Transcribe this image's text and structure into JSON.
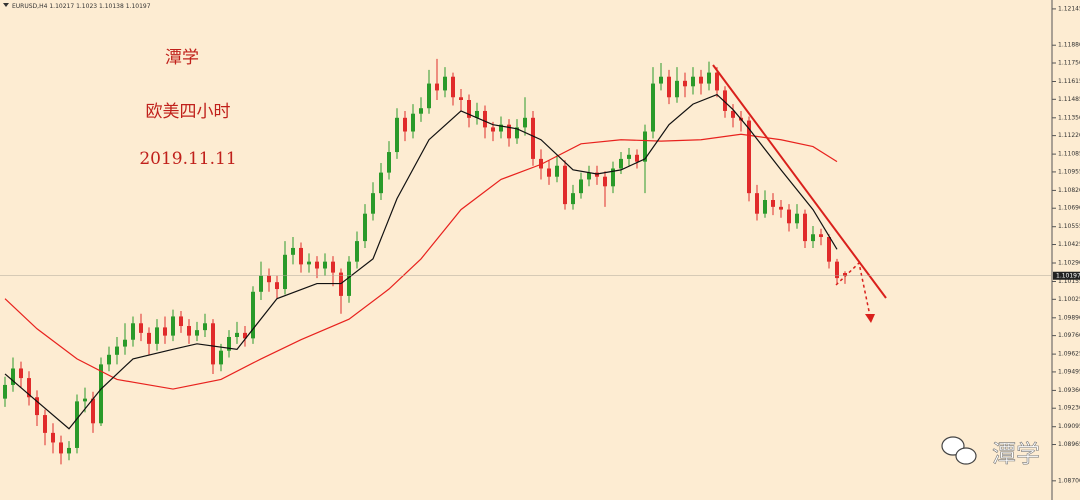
{
  "chart_data": {
    "type": "candlestick",
    "symbol": "EURUSD,H4",
    "up_color": "#2a9a2a",
    "down_color": "#e02b2b",
    "ylim": [
      1.0856,
      1.1221
    ],
    "yticks": [
      1.12145,
      {
        "value": 1.1188,
        "label": "1.11880"
      },
      {
        "value": 1.1175,
        "label": "1.11750"
      },
      1.11615,
      1.11485,
      {
        "value": 1.1135,
        "label": "1.11350"
      },
      {
        "value": 1.1122,
        "label": "1.11220"
      },
      1.11085,
      1.10955,
      {
        "value": 1.1082,
        "label": "1.10820"
      },
      {
        "value": 1.1069,
        "label": "1.10690"
      },
      1.10555,
      1.10425,
      {
        "value": 1.1029,
        "label": "1.10290"
      },
      1.10155,
      1.10025,
      {
        "value": 1.0989,
        "label": "1.09890"
      },
      {
        "value": 1.0976,
        "label": "1.09760"
      },
      1.09625,
      1.09495,
      {
        "value": 1.0936,
        "label": "1.09360"
      },
      {
        "value": 1.0923,
        "label": "1.09230"
      },
      1.09095,
      1.08965,
      {
        "value": 1.087,
        "label": "1.08700"
      }
    ],
    "open": [
      1.093,
      1.094,
      1.0952,
      1.0945,
      1.0931,
      1.0918,
      1.0905,
      1.0898,
      1.089,
      1.0894,
      1.0928,
      1.093,
      1.0912,
      1.0955,
      1.0962,
      1.0968,
      1.0973,
      1.0985,
      1.0978,
      1.097,
      1.0982,
      1.0976,
      1.099,
      1.0983,
      1.0976,
      1.098,
      1.0985,
      1.0955,
      1.0965,
      1.0975,
      1.0978,
      1.0974,
      1.1008,
      1.102,
      1.1015,
      1.101,
      1.1035,
      1.104,
      1.1028,
      1.103,
      1.1025,
      1.103,
      1.1022,
      1.1005,
      1.103,
      1.1045,
      1.1065,
      1.108,
      1.1095,
      1.111,
      1.1135,
      1.1125,
      1.1138,
      1.1142,
      1.116,
      1.1155,
      1.1165,
      1.115,
      1.1148,
      1.1135,
      1.114,
      1.1128,
      1.1125,
      1.113,
      1.112,
      1.1128,
      1.1135,
      1.1105,
      1.1098,
      1.1092,
      1.11,
      1.1072,
      1.108,
      1.109,
      1.1095,
      1.1092,
      1.1085,
      1.1098,
      1.1105,
      1.1108,
      1.1103,
      1.1125,
      1.116,
      1.1165,
      1.115,
      1.1162,
      1.1158,
      1.1165,
      1.116,
      1.1168,
      1.1155,
      1.114,
      1.1135,
      1.1133,
      1.108,
      1.1065,
      1.1075,
      1.107,
      1.1068,
      1.1058,
      1.1065,
      1.1045,
      1.105,
      1.1048,
      1.103,
      1.10217
    ],
    "high": [
      1.0946,
      1.096,
      1.0957,
      1.095,
      1.0936,
      1.0922,
      1.0912,
      1.0903,
      1.0899,
      1.0933,
      1.0938,
      1.0935,
      1.096,
      1.0968,
      1.0975,
      1.0985,
      1.099,
      1.0992,
      1.0982,
      1.0988,
      1.099,
      1.0995,
      1.0994,
      1.0988,
      1.0986,
      1.0992,
      1.0988,
      1.097,
      1.098,
      1.0986,
      1.0983,
      1.1012,
      1.103,
      1.1025,
      1.102,
      1.1045,
      1.1048,
      1.1044,
      1.1036,
      1.1034,
      1.1036,
      1.1034,
      1.1025,
      1.1034,
      1.1052,
      1.1072,
      1.1088,
      1.1102,
      1.1118,
      1.1142,
      1.114,
      1.1145,
      1.115,
      1.117,
      1.1178,
      1.1172,
      1.1168,
      1.1156,
      1.1152,
      1.1146,
      1.1144,
      1.1132,
      1.1136,
      1.1134,
      1.1134,
      1.115,
      1.114,
      1.1112,
      1.1104,
      1.1108,
      1.1104,
      1.1086,
      1.1095,
      1.11,
      1.11,
      1.1096,
      1.1103,
      1.111,
      1.1113,
      1.1112,
      1.113,
      1.1172,
      1.1175,
      1.117,
      1.1172,
      1.1168,
      1.1172,
      1.117,
      1.1176,
      1.1172,
      1.1158,
      1.1145,
      1.114,
      1.1136,
      1.1086,
      1.1082,
      1.108,
      1.1075,
      1.1072,
      1.1072,
      1.1068,
      1.1056,
      1.1054,
      1.105,
      1.1032,
      1.1023
    ],
    "low": [
      1.0924,
      1.0935,
      1.0938,
      1.0925,
      1.091,
      1.0896,
      1.089,
      1.0882,
      1.0885,
      1.089,
      1.092,
      1.0905,
      1.091,
      1.095,
      1.0955,
      1.0962,
      1.0968,
      1.0972,
      1.0962,
      1.0965,
      1.097,
      1.0972,
      1.0978,
      1.097,
      1.0972,
      1.0975,
      1.0948,
      1.095,
      1.096,
      1.097,
      1.0968,
      1.097,
      1.1002,
      1.1008,
      1.1003,
      1.1006,
      1.1028,
      1.1022,
      1.1022,
      1.1018,
      1.102,
      1.1012,
      1.0992,
      1.1,
      1.1025,
      1.104,
      1.106,
      1.1075,
      1.109,
      1.1105,
      1.1118,
      1.112,
      1.1132,
      1.1138,
      1.1148,
      1.115,
      1.1144,
      1.114,
      1.1128,
      1.113,
      1.112,
      1.1118,
      1.112,
      1.1114,
      1.1116,
      1.1122,
      1.11,
      1.109,
      1.1086,
      1.1088,
      1.1068,
      1.1068,
      1.1076,
      1.1085,
      1.1086,
      1.107,
      1.108,
      1.1094,
      1.11,
      1.1098,
      1.108,
      1.112,
      1.1155,
      1.1145,
      1.1146,
      1.115,
      1.1152,
      1.1152,
      1.1155,
      1.115,
      1.1135,
      1.1128,
      1.1125,
      1.1074,
      1.106,
      1.1062,
      1.1064,
      1.1062,
      1.1052,
      1.1054,
      1.104,
      1.104,
      1.1042,
      1.1025,
      1.1014,
      1.10138
    ],
    "close": [
      1.094,
      1.0952,
      1.0945,
      1.0931,
      1.0918,
      1.0905,
      1.0898,
      1.089,
      1.0894,
      1.0928,
      1.093,
      1.0912,
      1.0955,
      1.0962,
      1.0968,
      1.0973,
      1.0985,
      1.0978,
      1.097,
      1.0982,
      1.0976,
      1.099,
      1.0983,
      1.0976,
      1.098,
      1.0985,
      1.0955,
      1.0965,
      1.0975,
      1.0978,
      1.0974,
      1.1008,
      1.102,
      1.1015,
      1.101,
      1.1035,
      1.104,
      1.1028,
      1.103,
      1.1025,
      1.103,
      1.1022,
      1.1005,
      1.103,
      1.1045,
      1.1065,
      1.108,
      1.1095,
      1.111,
      1.1135,
      1.1125,
      1.1138,
      1.1142,
      1.116,
      1.1155,
      1.1165,
      1.115,
      1.1148,
      1.1135,
      1.114,
      1.1128,
      1.1125,
      1.113,
      1.112,
      1.1128,
      1.1135,
      1.1105,
      1.1098,
      1.1092,
      1.11,
      1.1072,
      1.108,
      1.109,
      1.1095,
      1.1092,
      1.1085,
      1.1098,
      1.1105,
      1.1108,
      1.1103,
      1.1125,
      1.116,
      1.1165,
      1.115,
      1.1162,
      1.1158,
      1.1165,
      1.116,
      1.1168,
      1.1155,
      1.114,
      1.1135,
      1.1133,
      1.108,
      1.1065,
      1.1075,
      1.107,
      1.1068,
      1.1058,
      1.1065,
      1.1045,
      1.105,
      1.1048,
      1.103,
      1.1018,
      1.10197
    ],
    "ma_fast": {
      "color": "#111111",
      "x": [
        0,
        3,
        8,
        12,
        16,
        21,
        24,
        29,
        34,
        39,
        42,
        46,
        49,
        53,
        57,
        61,
        64,
        67,
        71,
        74,
        77,
        80,
        83,
        86,
        89,
        91,
        93,
        97,
        101,
        104
      ],
      "values": [
        1.0948,
        1.0933,
        1.0908,
        1.0937,
        1.0959,
        1.0966,
        1.097,
        1.0966,
        1.1003,
        1.1014,
        1.1014,
        1.1032,
        1.1076,
        1.1119,
        1.114,
        1.113,
        1.1127,
        1.1119,
        1.1097,
        1.1094,
        1.1097,
        1.1105,
        1.113,
        1.1145,
        1.1152,
        1.1141,
        1.1127,
        1.1097,
        1.1068,
        1.1039
      ]
    },
    "ma_slow": {
      "color": "#e8221e",
      "x": [
        0,
        4,
        9,
        14,
        21,
        27,
        32,
        37,
        43,
        48,
        52,
        57,
        62,
        67,
        72,
        77,
        82,
        87,
        92,
        97,
        101,
        104
      ],
      "values": [
        1.1003,
        1.0981,
        1.0959,
        1.0944,
        1.0937,
        1.0944,
        1.0959,
        1.0973,
        1.0988,
        1.101,
        1.1032,
        1.1068,
        1.109,
        1.1101,
        1.1116,
        1.1119,
        1.1118,
        1.1119,
        1.1123,
        1.1119,
        1.1114,
        1.1103
      ]
    },
    "annotations": [
      "潭学",
      "欧美四小时",
      "2019.11.11"
    ],
    "watermark": "潭学"
  }
}
